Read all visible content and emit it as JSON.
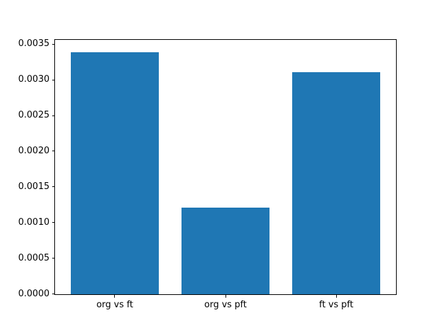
{
  "chart_data": {
    "type": "bar",
    "categories": [
      "org vs ft",
      "org vs pft",
      "ft vs pft"
    ],
    "values": [
      0.00339,
      0.00121,
      0.00311
    ],
    "title": "",
    "xlabel": "",
    "ylabel": "",
    "ylim": [
      0,
      0.00356
    ],
    "yticks": [
      0.0,
      0.0005,
      0.001,
      0.0015,
      0.002,
      0.0025,
      0.003,
      0.0035
    ],
    "ytick_labels": [
      "0.0000",
      "0.0005",
      "0.0010",
      "0.0015",
      "0.0020",
      "0.0025",
      "0.0030",
      "0.0035"
    ],
    "bar_color": "#1f77b4",
    "bar_relative_width": 0.8,
    "grid": false,
    "legend": null,
    "background_color": "#ffffff",
    "spine_color": "#000000"
  }
}
